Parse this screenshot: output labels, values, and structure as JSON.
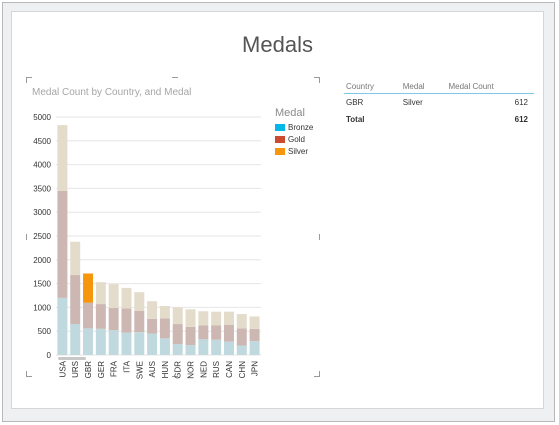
{
  "page": {
    "title": "Medals"
  },
  "chart": {
    "title": "Medal Count by Country, and Medal",
    "legend": {
      "title": "Medal",
      "items": [
        {
          "label": "Bronze",
          "color": "#01b8e8"
        },
        {
          "label": "Gold",
          "color": "#cc4b2e"
        },
        {
          "label": "Silver",
          "color": "#f5960d"
        }
      ]
    }
  },
  "chart_data": {
    "type": "bar",
    "stacked": true,
    "categories": [
      "USA",
      "URS",
      "GBR",
      "GER",
      "FRA",
      "ITA",
      "SWE",
      "AUS",
      "HUN",
      "GDR",
      "NOR",
      "NED",
      "RUS",
      "CAN",
      "CHN",
      "JPN"
    ],
    "series": [
      {
        "name": "Bronze",
        "color": "#01b8e8",
        "faded_color": "#bfd9df",
        "values": [
          1200,
          650,
          560,
          550,
          520,
          470,
          480,
          450,
          350,
          230,
          210,
          330,
          320,
          280,
          200,
          290
        ]
      },
      {
        "name": "Gold",
        "color": "#cc4b2e",
        "faded_color": "#cdb7b3",
        "values": [
          2250,
          1030,
          540,
          520,
          470,
          510,
          450,
          310,
          420,
          420,
          380,
          290,
          300,
          350,
          360,
          260
        ]
      },
      {
        "name": "Silver",
        "color": "#f5960d",
        "faded_color": "#e4dccb",
        "values": [
          1380,
          700,
          612,
          460,
          500,
          430,
          390,
          370,
          260,
          350,
          370,
          300,
          290,
          280,
          300,
          260
        ]
      }
    ],
    "highlight": {
      "category": "GBR",
      "series": "Silver"
    },
    "ylim": [
      0,
      5000
    ],
    "yticks": [
      0,
      500,
      1000,
      1500,
      2000,
      2500,
      3000,
      3500,
      4000,
      4500,
      5000
    ],
    "grid": true,
    "legend_position": "right"
  },
  "table": {
    "columns": [
      "Country",
      "Medal",
      "Medal Count"
    ],
    "rows": [
      {
        "country": "GBR",
        "medal": "Silver",
        "count": "612"
      }
    ],
    "total": {
      "label": "Total",
      "count": "612"
    }
  }
}
